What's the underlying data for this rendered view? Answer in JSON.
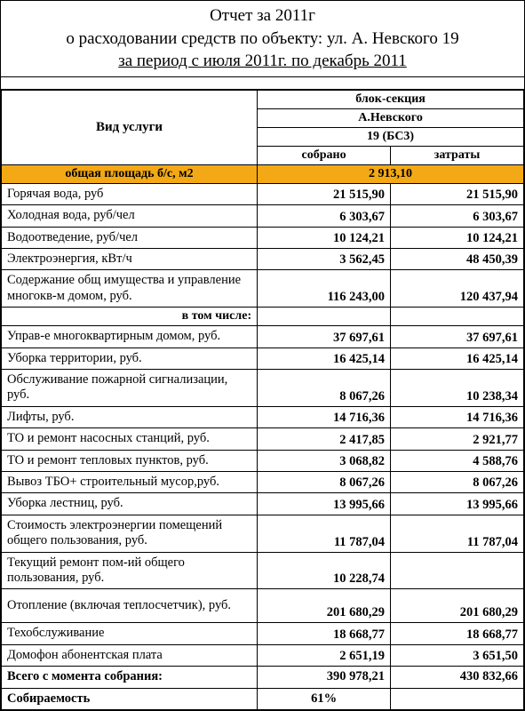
{
  "title": {
    "line1": "Отчет за 2011г",
    "line2": "о расходовании средств по объекту: ул. А. Невского 19",
    "line3": "за период с июля 2011г. по декабрь 2011"
  },
  "header": {
    "service_type": "Вид услуги",
    "block_section": "блок-секция",
    "address": "А.Невского",
    "building": "19 (БС3)",
    "collected": "собрано",
    "expenses": "затраты"
  },
  "area_row": {
    "label": "общая площадь б/с, м2",
    "value": "2 913,10"
  },
  "rows": [
    {
      "label": "Горячая вода, руб",
      "collected": "21 515,90",
      "expenses": "21 515,90"
    },
    {
      "label": "Холодная вода, руб/чел",
      "collected": "6 303,67",
      "expenses": "6 303,67"
    },
    {
      "label": "Водоотведение, руб/чел",
      "collected": "10 124,21",
      "expenses": "10 124,21"
    },
    {
      "label": "Электроэнергия, кВт/ч",
      "collected": "3 562,45",
      "expenses": "48 450,39"
    },
    {
      "label": "Содержание общ имущества и управление многокв-м домом, руб.",
      "collected": "116 243,00",
      "expenses": "120 437,94",
      "tall": true
    }
  ],
  "including_label": "в том числе:",
  "sub_rows": [
    {
      "label": "Управ-е многоквартирным домом, руб.",
      "collected": "37 697,61",
      "expenses": "37 697,61"
    },
    {
      "label": "Уборка территории, руб.",
      "collected": "16 425,14",
      "expenses": "16 425,14"
    },
    {
      "label": "Обслуживание пожарной сигнализации, руб.",
      "collected": "8 067,26",
      "expenses": "10 238,34",
      "tall": true
    },
    {
      "label": "Лифты, руб.",
      "collected": "14 716,36",
      "expenses": "14 716,36"
    },
    {
      "label": "ТО и ремонт насосных станций, руб.",
      "collected": "2 417,85",
      "expenses": "2 921,77"
    },
    {
      "label": "ТО и ремонт тепловых пунктов, руб.",
      "collected": "3 068,82",
      "expenses": "4 588,76"
    },
    {
      "label": "Вывоз ТБО+ строительный мусор,руб.",
      "collected": "8 067,26",
      "expenses": "8 067,26"
    },
    {
      "label": "Уборка лестниц, руб.",
      "collected": "13 995,66",
      "expenses": "13 995,66"
    },
    {
      "label": "Стоимость электроэнергии помещений общего пользования, руб.",
      "collected": "11 787,04",
      "expenses": "11 787,04",
      "tall": true
    },
    {
      "label": "Текущий ремонт пом-ий общего пользования, руб.",
      "collected": "10 228,74",
      "expenses": "",
      "tall": true
    }
  ],
  "bottom_rows": [
    {
      "label": "Отопление (включая теплосчетчик), руб.",
      "collected": "201 680,29",
      "expenses": "201 680,29",
      "tall": true
    },
    {
      "label": "Техобслуживание",
      "collected": "18 668,77",
      "expenses": "18 668,77"
    },
    {
      "label": "Домофон абонентская плата",
      "collected": "2 651,19",
      "expenses": "3 651,50"
    }
  ],
  "totals": {
    "label": "Всего с момента собрания:",
    "collected": "390 978,21",
    "expenses": "430 832,66"
  },
  "collectability": {
    "label": "Собираемость",
    "value": "61%"
  },
  "colors": {
    "highlight": "#f3a915",
    "border": "#000000",
    "background": "#ffffff",
    "text": "#000000"
  }
}
